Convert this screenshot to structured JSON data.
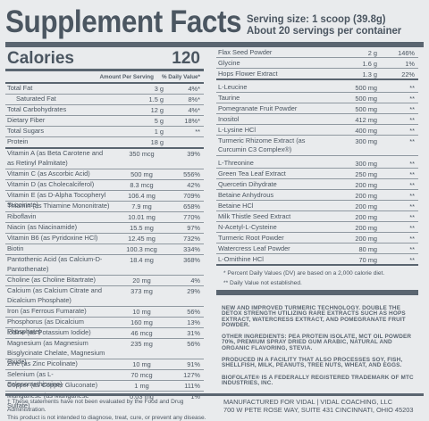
{
  "header": {
    "title": "Supplement Facts",
    "serving_size": "Serving size: 1 scoop (39.8g)",
    "servings_per_container": "About 20 servings per container"
  },
  "calories": {
    "label": "Calories",
    "value": "120"
  },
  "column_headers": {
    "amount": "Amount Per Serving",
    "dv": "% Daily Value*"
  },
  "left_rows": [
    {
      "name": "Total Fat",
      "amount": "3 g",
      "dv": "4%*"
    },
    {
      "name": "Saturated Fat",
      "amount": "1.5 g",
      "dv": "8%*"
    },
    {
      "name": "Total Carbohydrates",
      "amount": "12 g",
      "dv": "4%*"
    },
    {
      "name": "Dietary Fiber",
      "amount": "5 g",
      "dv": "18%*"
    },
    {
      "name": "Total Sugars",
      "amount": "1 g",
      "dv": "**"
    },
    {
      "name": "Protein",
      "amount": "18 g",
      "dv": ""
    },
    {
      "name": "Vitamin A (as Beta Carotene and as Retinyl Palmitate)",
      "amount": "350 mcg",
      "dv": "39%"
    },
    {
      "name": "Vitamin C (as Ascorbic Acid)",
      "amount": "500 mg",
      "dv": "556%"
    },
    {
      "name": "Vitamin D (as Cholecalciferol)",
      "amount": "8.3 mcg",
      "dv": "42%"
    },
    {
      "name": "Vitamin E (as D-Alpha Tocopheryl Succinate)",
      "amount": "106.4 mg",
      "dv": "709%"
    },
    {
      "name": "Thiamin (as Thiamine Mononitrate)",
      "amount": "7.9 mg",
      "dv": "658%"
    },
    {
      "name": "Riboflavin",
      "amount": "10.01 mg",
      "dv": "770%"
    },
    {
      "name": "Niacin (as Niacinamide)",
      "amount": "15.5 mg",
      "dv": "97%"
    },
    {
      "name": "Vitamin B6 (as Pyridoxine HCl)",
      "amount": "12.45 mg",
      "dv": "732%"
    },
    {
      "name": "Biotin",
      "amount": "100.3 mcg",
      "dv": "334%"
    },
    {
      "name": "Pantothenic Acid (as Calcium-D-Pantothenate)",
      "amount": "18.4 mg",
      "dv": "368%"
    },
    {
      "name": "Choline (as Choline Bitartrate)",
      "amount": "20 mg",
      "dv": "4%"
    },
    {
      "name": "Calcium (as Calcium Citrate and Dicalcium Phosphate)",
      "amount": "373 mg",
      "dv": "29%"
    },
    {
      "name": "Iron (as Ferrous Fumarate)",
      "amount": "10 mg",
      "dv": "56%"
    },
    {
      "name": "Phosphorus (as Dicalcium Phosphate)",
      "amount": "160 mg",
      "dv": "13%"
    },
    {
      "name": "Iodine (as Potassium Iodide)",
      "amount": "46 mcg",
      "dv": "31%"
    },
    {
      "name": "Magnesium (as Magnesium Bisglycinate Chelate, Magnesium Oxide)",
      "amount": "235 mg",
      "dv": "56%"
    },
    {
      "name": "Zinc (as Zinc Picolinate)",
      "amount": "10 mg",
      "dv": "91%"
    },
    {
      "name": "Selenium (as L-Selenomethionine)",
      "amount": "70 mcg",
      "dv": "127%"
    },
    {
      "name": "Copper (as Copper Gluconate)",
      "amount": "1 mg",
      "dv": "111%"
    },
    {
      "name": "Manganese (as Manganese Sulfate)",
      "amount": "0.03 mg",
      "dv": "1%"
    }
  ],
  "right_rows": [
    {
      "name": "Flax Seed Powder",
      "amount": "2 g",
      "dv": "146%"
    },
    {
      "name": "Glycine",
      "amount": "1.6 g",
      "dv": "1%"
    },
    {
      "name": "Hops Flower Extract",
      "amount": "1.3 g",
      "dv": "22%"
    },
    {
      "name": "L-Leucine",
      "amount": "500 mg",
      "dv": "**"
    },
    {
      "name": "Taurine",
      "amount": "500 mg",
      "dv": "**"
    },
    {
      "name": "Pomegranate Fruit Powder",
      "amount": "500 mg",
      "dv": "**"
    },
    {
      "name": "Inositol",
      "amount": "412 mg",
      "dv": "**"
    },
    {
      "name": "L-Lysine HCl",
      "amount": "400 mg",
      "dv": "**"
    },
    {
      "name": "Turmeric Rhizome Extract (as Curcumin C3 Complex®)",
      "amount": "300 mg",
      "dv": "**"
    },
    {
      "name": "L-Threonine",
      "amount": "300 mg",
      "dv": "**"
    },
    {
      "name": "Green Tea Leaf Extract",
      "amount": "250 mg",
      "dv": "**"
    },
    {
      "name": "Quercetin Dihydrate",
      "amount": "200 mg",
      "dv": "**"
    },
    {
      "name": "Betaine Anhydrous",
      "amount": "200 mg",
      "dv": "**"
    },
    {
      "name": "Betaine HCl",
      "amount": "200 mg",
      "dv": "**"
    },
    {
      "name": "Milk Thistle Seed Extract",
      "amount": "200 mg",
      "dv": "**"
    },
    {
      "name": "N-Acetyl-L-Cysteine",
      "amount": "200 mg",
      "dv": "**"
    },
    {
      "name": "Turmeric Root Powder",
      "amount": "200 mg",
      "dv": "**"
    },
    {
      "name": "Watercress Leaf Powder",
      "amount": "80 mg",
      "dv": "**"
    },
    {
      "name": "L-Ornithine HCl",
      "amount": "70 mg",
      "dv": "**"
    }
  ],
  "notes": {
    "percent": "* Percent Daily Values (DV) are based on a 2,000 calorie diet.",
    "not_established": "** Daily Value not established."
  },
  "other": {
    "p1": "New and improved turmeric technology. Double the detox strength utilizing rare extracts such as hops extract, watercress extract, and pomegranate fruit powder.",
    "p2": "Other ingredients: Pea protein isolate, MCT oil powder 70%, premium spray dried gum arabic, natural and organic flavoring, stevia.",
    "p3": "Produced in a facility that also processes soy, fish, shellfish, milk, peanuts, tree nuts, wheat, and eggs.",
    "p4": "BIOFOLATE® IS A FEDERALLY REGISTERED TRADEMARK OF MTC INDUSTRIES, INC."
  },
  "footer": {
    "fda_line1": "† These statements have not been evaluated by the Food and Drug Administration.",
    "fda_line2": "This product is not intended to diagnose, treat, cure, or prevent any disease.",
    "mfr_line1": "Manufactured for Vidal | Vidal Coaching, LLC",
    "mfr_line2": "700 W Pete Rose Way, Suite 431 Cincinnati, Ohio 45203"
  }
}
